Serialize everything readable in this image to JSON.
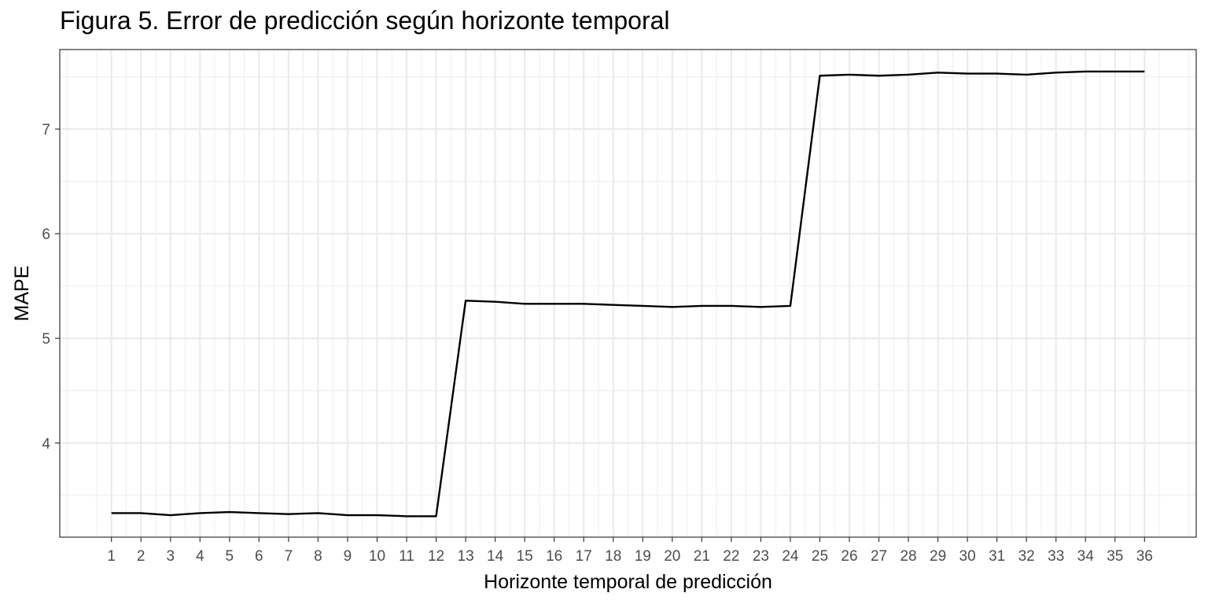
{
  "chart_data": {
    "type": "line",
    "title": "Figura 5. Error de predicción según horizonte temporal",
    "xlabel": "Horizonte temporal de predicción",
    "ylabel": "MAPE",
    "x": [
      1,
      2,
      3,
      4,
      5,
      6,
      7,
      8,
      9,
      10,
      11,
      12,
      13,
      14,
      15,
      16,
      17,
      18,
      19,
      20,
      21,
      22,
      23,
      24,
      25,
      26,
      27,
      28,
      29,
      30,
      31,
      32,
      33,
      34,
      35,
      36
    ],
    "x_tick_labels": [
      "1",
      "2",
      "3",
      "4",
      "5",
      "6",
      "7",
      "8",
      "9",
      "10",
      "11",
      "12",
      "13",
      "14",
      "15",
      "16",
      "17",
      "18",
      "19",
      "20",
      "21",
      "22",
      "23",
      "24",
      "25",
      "26",
      "27",
      "28",
      "29",
      "30",
      "31",
      "32",
      "33",
      "34",
      "35",
      "36"
    ],
    "series": [
      {
        "values": [
          3.33,
          3.33,
          3.31,
          3.33,
          3.34,
          3.33,
          3.32,
          3.33,
          3.31,
          3.31,
          3.3,
          3.3,
          5.36,
          5.35,
          5.33,
          5.33,
          5.33,
          5.32,
          5.31,
          5.3,
          5.31,
          5.31,
          5.3,
          5.31,
          7.51,
          7.52,
          7.51,
          7.52,
          7.54,
          7.53,
          7.53,
          7.52,
          7.54,
          7.55,
          7.55,
          7.55
        ],
        "color": "#000000"
      }
    ],
    "xlim": [
      -0.75,
      37.75
    ],
    "ylim": [
      3.1,
      7.76
    ],
    "y_ticks": [
      4,
      5,
      6,
      7
    ],
    "y_tick_labels": [
      "4",
      "5",
      "6",
      "7"
    ],
    "grid": true,
    "legend": "none",
    "theme": "bw"
  }
}
